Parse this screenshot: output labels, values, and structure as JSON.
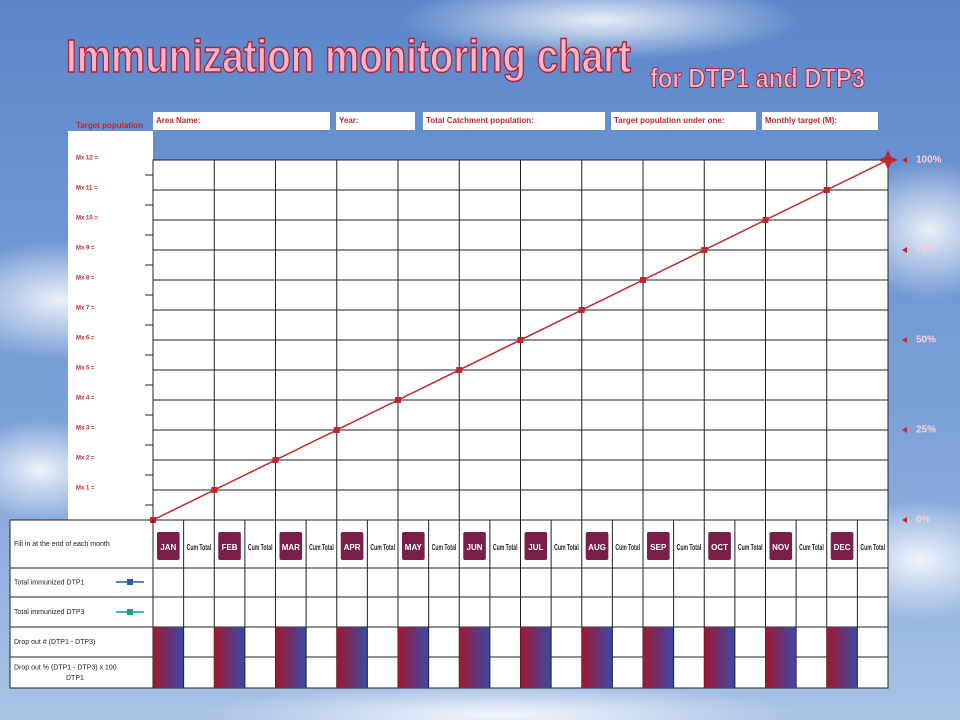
{
  "title": "Immunization monitoring chart",
  "subtitle": "for DTP1 and DTP3",
  "header": {
    "target_population": "Target population",
    "fields": [
      "Area Name:",
      "Year:",
      "Total Catchment population:",
      "Target population under one:",
      "Monthly target (M):"
    ]
  },
  "y_labels": [
    "Mx 12 =",
    "Mx 11 =",
    "Mx 10 =",
    "Mx 9 =",
    "Mx 8 =",
    "Mx 7 =",
    "Mx 6 =",
    "Mx 5 =",
    "Mx 4 =",
    "Mx 3 =",
    "Mx 2 =",
    "Mx 1 ="
  ],
  "percent_labels": [
    "100%",
    "75%",
    "50%",
    "25%",
    "0%"
  ],
  "months": [
    "JAN",
    "FEB",
    "MAR",
    "APR",
    "MAY",
    "JUN",
    "JUL",
    "AUG",
    "SEP",
    "OCT",
    "NOV",
    "DEC"
  ],
  "cum_total": "Cum Total",
  "rows": [
    "Fill in at the end of each month",
    "Total immunized DTP1",
    "Total immunized DTP3",
    "Drop out # (DTP1 - DTP3)",
    "Drop out % (DTP1 - DTP3) x 100"
  ],
  "denominator": "DTP1"
}
